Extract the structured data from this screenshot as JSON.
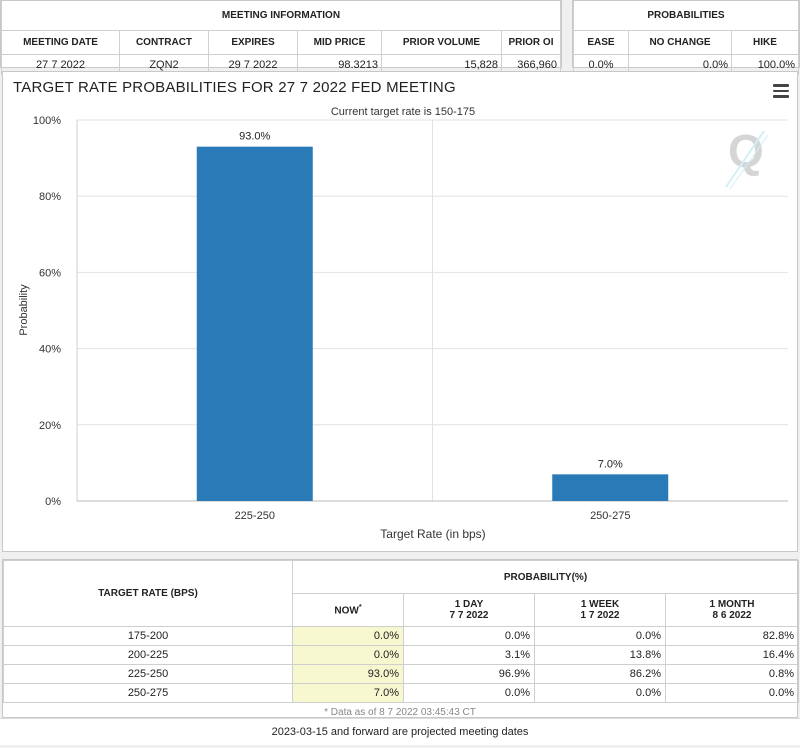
{
  "meeting_info": {
    "header": "MEETING INFORMATION",
    "columns": [
      "MEETING DATE",
      "CONTRACT",
      "EXPIRES",
      "MID PRICE",
      "PRIOR VOLUME",
      "PRIOR OI"
    ],
    "row": [
      "27 7 2022",
      "ZQN2",
      "29 7 2022",
      "98.3213",
      "15,828",
      "366,960"
    ]
  },
  "probabilities": {
    "header": "PROBABILITIES",
    "columns": [
      "EASE",
      "NO CHANGE",
      "HIKE"
    ],
    "row": [
      "0.0%",
      "0.0%",
      "100.0%"
    ]
  },
  "chart_panel": {
    "title": "TARGET RATE PROBABILITIES FOR 27 7 2022 FED MEETING",
    "menu_icon": "hamburger-menu-icon",
    "logo_icon": "q-logo-icon"
  },
  "chart_data": {
    "type": "bar",
    "title": "",
    "subtitle": "Current target rate is 150-175",
    "categories": [
      "225-250",
      "250-275"
    ],
    "values": [
      93.0,
      7.0
    ],
    "data_labels": [
      "93.0%",
      "7.0%"
    ],
    "xlabel": "Target Rate (in bps)",
    "ylabel": "Probability",
    "ylim": [
      0,
      100
    ],
    "yticks": [
      0,
      20,
      40,
      60,
      80,
      100
    ],
    "ytick_labels": [
      "0%",
      "20%",
      "40%",
      "60%",
      "80%",
      "100%"
    ],
    "grid": true,
    "bar_color": "#2a7ab8"
  },
  "prob_table": {
    "target_header": "TARGET RATE (BPS)",
    "prob_header": "PROBABILITY(%)",
    "sub_headers": [
      {
        "label": "NOW",
        "sup": "*"
      },
      {
        "label": "1 DAY",
        "date": "7 7 2022"
      },
      {
        "label": "1 WEEK",
        "date": "1 7 2022"
      },
      {
        "label": "1 MONTH",
        "date": "8 6 2022"
      }
    ],
    "rows": [
      {
        "rate": "175-200",
        "now": "0.0%",
        "day": "0.0%",
        "week": "0.0%",
        "month": "82.8%"
      },
      {
        "rate": "200-225",
        "now": "0.0%",
        "day": "3.1%",
        "week": "13.8%",
        "month": "16.4%"
      },
      {
        "rate": "225-250",
        "now": "93.0%",
        "day": "96.9%",
        "week": "86.2%",
        "month": "0.8%"
      },
      {
        "rate": "250-275",
        "now": "7.0%",
        "day": "0.0%",
        "week": "0.0%",
        "month": "0.0%"
      }
    ],
    "footnote": "* Data as of 8 7 2022 03:45:43 CT"
  },
  "projected_note": "2023-03-15 and forward are projected meeting dates"
}
